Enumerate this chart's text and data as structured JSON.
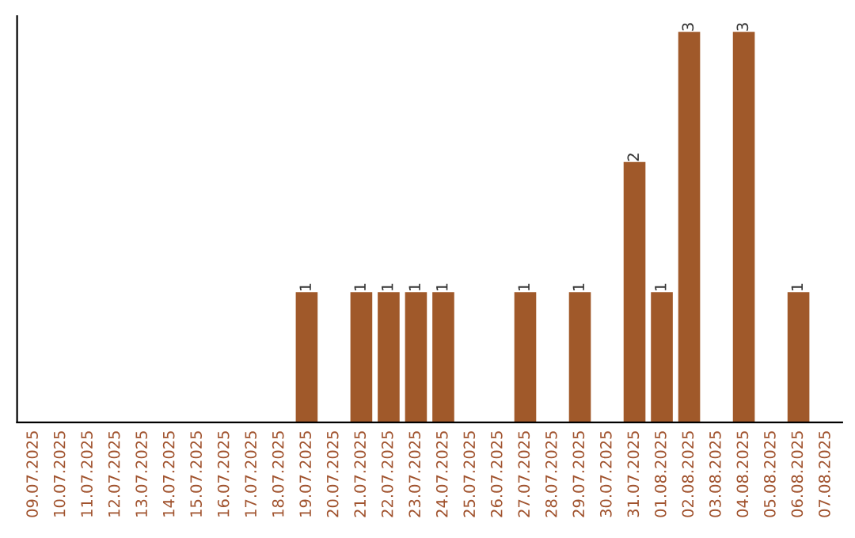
{
  "chart_data": {
    "type": "bar",
    "categories": [
      "09.07.2025",
      "10.07.2025",
      "11.07.2025",
      "12.07.2025",
      "13.07.2025",
      "14.07.2025",
      "15.07.2025",
      "16.07.2025",
      "17.07.2025",
      "18.07.2025",
      "19.07.2025",
      "20.07.2025",
      "21.07.2025",
      "22.07.2025",
      "23.07.2025",
      "24.07.2025",
      "25.07.2025",
      "26.07.2025",
      "27.07.2025",
      "28.07.2025",
      "29.07.2025",
      "30.07.2025",
      "31.07.2025",
      "01.08.2025",
      "02.08.2025",
      "03.08.2025",
      "04.08.2025",
      "05.08.2025",
      "06.08.2025",
      "07.08.2025"
    ],
    "values": [
      0,
      0,
      0,
      0,
      0,
      0,
      0,
      0,
      0,
      0,
      1,
      0,
      1,
      1,
      1,
      1,
      0,
      0,
      1,
      0,
      1,
      0,
      2,
      1,
      3,
      0,
      3,
      0,
      1,
      0
    ],
    "value_labels": [
      null,
      null,
      null,
      null,
      null,
      null,
      null,
      null,
      null,
      null,
      "1",
      null,
      "1",
      "1",
      "1",
      "1",
      null,
      null,
      "1",
      null,
      "1",
      null,
      "2",
      "1",
      "3",
      null,
      "3",
      null,
      "1",
      null
    ],
    "color": "#a0592a",
    "tick_labels": "x",
    "grid": false
  }
}
